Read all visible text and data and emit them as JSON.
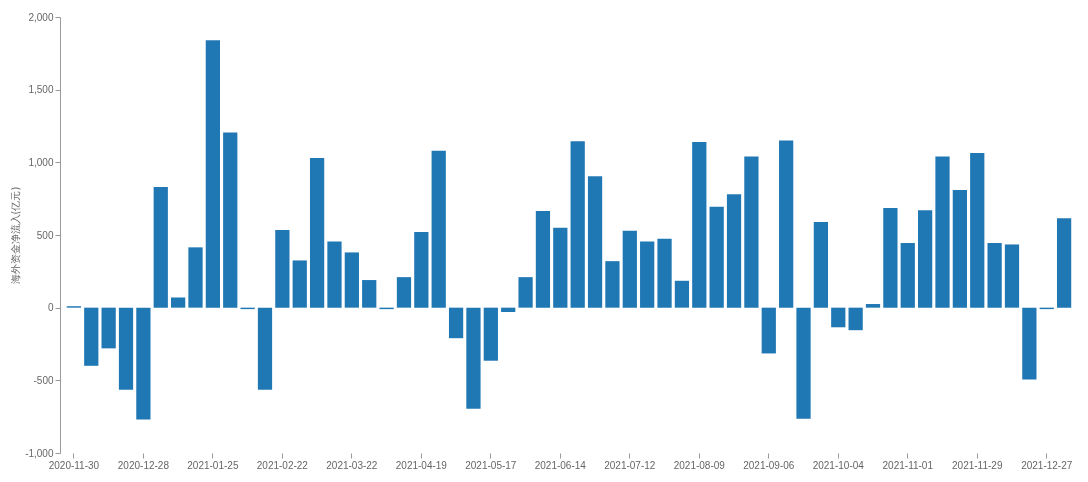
{
  "chart_data": {
    "type": "bar",
    "ylabel": "海外资金净流入(亿元)",
    "categories": [
      "2020-11-30",
      null,
      null,
      null,
      "2020-12-28",
      null,
      null,
      null,
      "2021-01-25",
      null,
      null,
      null,
      "2021-02-22",
      null,
      null,
      null,
      "2021-03-22",
      null,
      null,
      null,
      "2021-04-19",
      null,
      null,
      null,
      "2021-05-17",
      null,
      null,
      null,
      "2021-06-14",
      null,
      null,
      null,
      "2021-07-12",
      null,
      null,
      null,
      "2021-08-09",
      null,
      null,
      null,
      "2021-09-06",
      null,
      null,
      null,
      "2021-10-04",
      null,
      null,
      null,
      "2021-11-01",
      null,
      null,
      null,
      "2021-11-29",
      null,
      null,
      null,
      "2021-12-27",
      null
    ],
    "values": [
      10,
      -400,
      -280,
      -565,
      -770,
      830,
      70,
      415,
      1840,
      1205,
      -10,
      -565,
      535,
      325,
      1030,
      455,
      380,
      190,
      -10,
      210,
      520,
      1080,
      -210,
      -695,
      -365,
      -30,
      210,
      665,
      550,
      1145,
      905,
      320,
      530,
      455,
      475,
      185,
      1140,
      695,
      780,
      1040,
      -315,
      1150,
      -765,
      590,
      -135,
      -155,
      25,
      685,
      445,
      670,
      1040,
      810,
      1065,
      445,
      435,
      -495,
      -10,
      615
    ],
    "color": "#1f77b4",
    "ylim": [
      -1000,
      2000
    ],
    "yticks": [
      {
        "value": -1000,
        "label": "-1,000"
      },
      {
        "value": -500,
        "label": "-500"
      },
      0,
      {
        "value": 500,
        "label": "500"
      },
      {
        "value": 1000,
        "label": "1,000"
      },
      {
        "value": 1500,
        "label": "1,500"
      },
      {
        "value": 2000,
        "label": "2,000"
      }
    ],
    "grid": false
  }
}
